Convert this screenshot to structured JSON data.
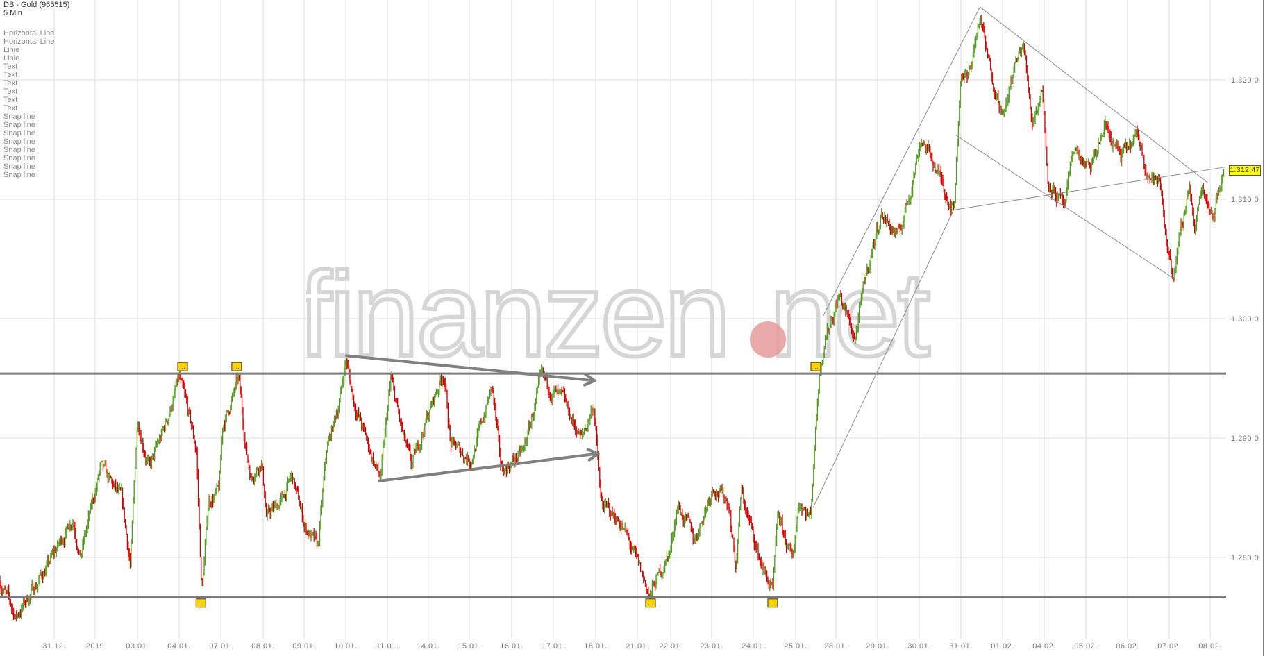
{
  "header": {
    "instrument": "DB - Gold (965515)",
    "interval": "5 Min"
  },
  "drawing_list": [
    "Horizontal Line",
    "Horizontal Line",
    "Linie",
    "Linie",
    "Text",
    "Text",
    "Text",
    "Text",
    "Text",
    "Text",
    "Snap line",
    "Snap line",
    "Snap line",
    "Snap line",
    "Snap line",
    "Snap line",
    "Snap line",
    "Snap line"
  ],
  "watermark": "finanzen.net",
  "colors": {
    "up": "#4f9a1c",
    "down": "#d30000",
    "grid": "#dddddd",
    "drawing": "#808080",
    "marker": "#ffd200",
    "price_box": "#ffff00",
    "watermark_dot": "#e8a0a0"
  },
  "chart_data": {
    "type": "candlestick",
    "title": "DB - Gold (965515)",
    "interval": "5 Min",
    "ylim": [
      1274,
      1327
    ],
    "y_ticks": [
      {
        "value": 1320,
        "label": "1.320,0"
      },
      {
        "value": 1310,
        "label": "1.310,0"
      },
      {
        "value": 1300,
        "label": "1.300,0"
      },
      {
        "value": 1290,
        "label": "1.290,0"
      },
      {
        "value": 1280,
        "label": "1.280,0"
      }
    ],
    "x_ticks": [
      {
        "date": "31.12.",
        "label": "31.12."
      },
      {
        "date": "02.01.",
        "label": "2019"
      },
      {
        "date": "03.01.",
        "label": "03.01."
      },
      {
        "date": "04.01.",
        "label": "04.01."
      },
      {
        "date": "07.01.",
        "label": "07.01."
      },
      {
        "date": "08.01.",
        "label": "08.01."
      },
      {
        "date": "09.01.",
        "label": "09.01."
      },
      {
        "date": "10.01.",
        "label": "10.01."
      },
      {
        "date": "11.01.",
        "label": "11.01."
      },
      {
        "date": "14.01.",
        "label": "14.01."
      },
      {
        "date": "15.01.",
        "label": "15.01."
      },
      {
        "date": "16.01.",
        "label": "16.01."
      },
      {
        "date": "17.01.",
        "label": "17.01."
      },
      {
        "date": "18.01.",
        "label": "18.01."
      },
      {
        "date": "21.01.",
        "label": "21.01."
      },
      {
        "date": "22.01.",
        "label": "22.01."
      },
      {
        "date": "23.01.",
        "label": "23.01."
      },
      {
        "date": "24.01.",
        "label": "24.01."
      },
      {
        "date": "25.01.",
        "label": "25.01."
      },
      {
        "date": "28.01.",
        "label": "28.01."
      },
      {
        "date": "29.01.",
        "label": "29.01."
      },
      {
        "date": "30.01.",
        "label": "30.01."
      },
      {
        "date": "31.01.",
        "label": "31.01."
      },
      {
        "date": "01.02.",
        "label": "01.02."
      },
      {
        "date": "04.02.",
        "label": "04.02."
      },
      {
        "date": "05.02.",
        "label": "05.02."
      },
      {
        "date": "06.02.",
        "label": "06.02."
      },
      {
        "date": "07.02.",
        "label": "07.02."
      },
      {
        "date": "08.02.",
        "label": "08.02."
      }
    ],
    "grid": true,
    "last_price": 1312.47,
    "last_price_label": "1.312,47",
    "price_path": [
      [
        "28.12. 00:00",
        1278.0
      ],
      [
        "28.12. 07:00",
        1275.0
      ],
      [
        "28.12. 21:30",
        1279.4
      ],
      [
        "31.12. 11:00",
        1283.4
      ],
      [
        "31.12. 15:30",
        1280.1
      ],
      [
        "02.01. 03:00",
        1287.5
      ],
      [
        "02.01. 15:00",
        1284.8
      ],
      [
        "02.01. 20:00",
        1279.4
      ],
      [
        "03.01. 00:00",
        1291.6
      ],
      [
        "03.01. 07:00",
        1287.5
      ],
      [
        "03.01. 14:00",
        1290.2
      ],
      [
        "04.01. 00:00",
        1294.9
      ],
      [
        "04.01. 06:00",
        1291.6
      ],
      [
        "04.01. 10:00",
        1288.9
      ],
      [
        "04.01. 13:00",
        1277.0
      ],
      [
        "04.01. 17:00",
        1284.8
      ],
      [
        "04.01. 23:00",
        1285.5
      ],
      [
        "07.01. 01:00",
        1290.9
      ],
      [
        "07.01. 10:00",
        1294.9
      ],
      [
        "07.01. 14:30",
        1288.9
      ],
      [
        "07.01. 17:00",
        1286.8
      ],
      [
        "07.01. 23:00",
        1288.2
      ],
      [
        "08.01. 02:00",
        1283.4
      ],
      [
        "08.01. 11:00",
        1284.8
      ],
      [
        "08.01. 17:00",
        1286.8
      ],
      [
        "09.01. 00:00",
        1282.8
      ],
      [
        "09.01. 08:00",
        1280.7
      ],
      [
        "09.01. 13:00",
        1288.9
      ],
      [
        "09.01. 20:00",
        1292.9
      ],
      [
        "10.01. 00:00",
        1296.6
      ],
      [
        "10.01. 05:00",
        1292.9
      ],
      [
        "10.01. 14:00",
        1288.9
      ],
      [
        "10.01. 20:00",
        1286.5
      ],
      [
        "11.01. 02:00",
        1294.9
      ],
      [
        "11.01. 09:00",
        1290.2
      ],
      [
        "11.01. 14:00",
        1287.5
      ],
      [
        "11.01. 23:00",
        1291.6
      ],
      [
        "14.01. 09:00",
        1295.6
      ],
      [
        "14.01. 13:00",
        1289.5
      ],
      [
        "15.01. 01:00",
        1288.2
      ],
      [
        "15.01. 13:00",
        1294.3
      ],
      [
        "15.01. 18:00",
        1287.2
      ],
      [
        "16.01. 07:00",
        1288.9
      ],
      [
        "16.01. 17:00",
        1294.9
      ],
      [
        "17.01. 06:00",
        1292.9
      ],
      [
        "17.01. 16:00",
        1289.9
      ],
      [
        "17.01. 23:00",
        1292.9
      ],
      [
        "18.01. 03:00",
        1284.5
      ],
      [
        "18.01. 15:00",
        1282.8
      ],
      [
        "21.01. 05:00",
        1278.0
      ],
      [
        "21.01. 09:00",
        1276.8
      ],
      [
        "22.01. 00:00",
        1280.7
      ],
      [
        "22.01. 04:00",
        1284.5
      ],
      [
        "22.01. 14:00",
        1281.4
      ],
      [
        "23.01. 01:00",
        1286.1
      ],
      [
        "23.01. 10:00",
        1284.5
      ],
      [
        "23.01. 14:00",
        1279.1
      ],
      [
        "23.01. 17:00",
        1285.5
      ],
      [
        "24.01. 03:00",
        1280.1
      ],
      [
        "24.01. 11:00",
        1277.0
      ],
      [
        "24.01. 14:00",
        1283.4
      ],
      [
        "24.01. 22:00",
        1279.7
      ],
      [
        "25.01. 02:00",
        1284.8
      ],
      [
        "25.01. 09:00",
        1283.4
      ],
      [
        "25.01. 11:00",
        1288.9
      ],
      [
        "25.01. 14:00",
        1295.3
      ],
      [
        "25.01. 17:00",
        1298.3
      ],
      [
        "28.01. 02:00",
        1302.0
      ],
      [
        "28.01. 11:00",
        1298.3
      ],
      [
        "28.01. 17:00",
        1303.4
      ],
      [
        "29.01. 02:00",
        1308.8
      ],
      [
        "29.01. 12:00",
        1306.8
      ],
      [
        "29.01. 19:00",
        1310.8
      ],
      [
        "30.01. 01:00",
        1315.2
      ],
      [
        "30.01. 10:00",
        1312.5
      ],
      [
        "30.01. 15:00",
        1310.8
      ],
      [
        "30.01. 20:00",
        1309.1
      ],
      [
        "31.01. 00:00",
        1320.9
      ],
      [
        "31.01. 04:00",
        1319.9
      ],
      [
        "31.01. 11:00",
        1325.3
      ],
      [
        "31.01. 16:00",
        1321.3
      ],
      [
        "01.02. 01:00",
        1316.9
      ],
      [
        "01.02. 06:00",
        1320.6
      ],
      [
        "01.02. 12:00",
        1323.0
      ],
      [
        "01.02. 17:00",
        1316.6
      ],
      [
        "01.02. 23:00",
        1319.3
      ],
      [
        "04.02. 02:00",
        1311.8
      ],
      [
        "04.02. 12:00",
        1309.1
      ],
      [
        "04.02. 17:00",
        1314.5
      ],
      [
        "05.02. 02:00",
        1312.2
      ],
      [
        "05.02. 11:00",
        1316.2
      ],
      [
        "05.02. 20:00",
        1313.5
      ],
      [
        "06.02. 06:00",
        1315.2
      ],
      [
        "06.02. 12:00",
        1312.2
      ],
      [
        "06.02. 19:00",
        1311.1
      ],
      [
        "06.02. 22:00",
        1307.1
      ],
      [
        "07.02. 02:00",
        1303.7
      ],
      [
        "07.02. 07:00",
        1307.1
      ],
      [
        "07.02. 12:00",
        1311.5
      ],
      [
        "07.02. 15:00",
        1307.1
      ],
      [
        "07.02. 19:00",
        1311.1
      ],
      [
        "08.02. 02:00",
        1308.8
      ],
      [
        "08.02. 08:00",
        1312.47
      ]
    ],
    "horizontal_lines": [
      1295.4,
      1276.7
    ],
    "arrows": [
      {
        "from": [
          "10.01. 00:30",
          1296.9
        ],
        "to": [
          "17.01. 23:30",
          1294.8
        ]
      },
      {
        "from": [
          "10.01. 19:20",
          1286.4
        ],
        "to": [
          "18.01. 01:30",
          1288.7
        ]
      }
    ],
    "trend_lines": [
      {
        "from": [
          "25.01. 16:20",
          1300.2
        ],
        "to": [
          "31.01. 11:00",
          1326.1
        ]
      },
      {
        "from": [
          "31.01. 11:00",
          1326.1
        ],
        "to": [
          "07.02. 22:30",
          1311.4
        ]
      },
      {
        "from": [
          "30.01. 20:45",
          1315.4
        ],
        "to": [
          "07.02. 02:20",
          1303.4
        ]
      },
      {
        "from": [
          "30.01. 19:50",
          1309.1
        ],
        "to": [
          "08.02. 09:00",
          1312.7
        ]
      },
      {
        "from": [
          "30.01. 19:50",
          1309.1
        ],
        "to": [
          "25.01. 10:30",
          1284.2
        ]
      }
    ],
    "text_markers": [
      {
        "date": "04.01. 02:00",
        "line": 1295.4,
        "side": "above",
        "text": "..."
      },
      {
        "date": "07.01. 09:00",
        "line": 1295.4,
        "side": "above",
        "text": "..."
      },
      {
        "date": "04.01. 12:30",
        "line": 1276.7,
        "side": "below",
        "text": "..."
      },
      {
        "date": "21.01. 09:30",
        "line": 1276.7,
        "side": "below",
        "text": "..."
      },
      {
        "date": "24.01. 11:00",
        "line": 1276.7,
        "side": "below",
        "text": "..."
      },
      {
        "date": "25.01. 12:00",
        "line": 1295.4,
        "side": "above",
        "text": "..."
      }
    ]
  }
}
